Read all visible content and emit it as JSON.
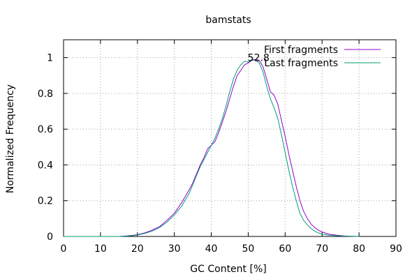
{
  "chart_data": {
    "type": "line",
    "title": "bamstats",
    "xlabel": "GC Content [%]",
    "ylabel": "Normalized Frequency",
    "xlim": [
      0,
      90
    ],
    "ylim": [
      0,
      1.1
    ],
    "xticks": [
      0,
      10,
      20,
      30,
      40,
      50,
      60,
      70,
      80,
      90
    ],
    "yticks": [
      0,
      0.2,
      0.4,
      0.6,
      0.8,
      1
    ],
    "grid": true,
    "legend_position": "top-right",
    "annotation": {
      "text": "52.8",
      "x": 52.8,
      "y": 0.985
    },
    "series": [
      {
        "name": "First fragments",
        "color": "#9400d3",
        "points": [
          [
            0,
            0
          ],
          [
            15,
            0
          ],
          [
            17,
            0.003
          ],
          [
            19,
            0.007
          ],
          [
            20,
            0.01
          ],
          [
            22,
            0.02
          ],
          [
            24,
            0.035
          ],
          [
            26,
            0.055
          ],
          [
            28,
            0.09
          ],
          [
            30,
            0.13
          ],
          [
            32,
            0.19
          ],
          [
            34,
            0.26
          ],
          [
            35,
            0.3
          ],
          [
            36,
            0.35
          ],
          [
            37,
            0.4
          ],
          [
            38,
            0.44
          ],
          [
            39,
            0.49
          ],
          [
            40,
            0.51
          ],
          [
            41,
            0.53
          ],
          [
            42,
            0.58
          ],
          [
            43,
            0.64
          ],
          [
            44,
            0.7
          ],
          [
            45,
            0.77
          ],
          [
            46,
            0.84
          ],
          [
            47,
            0.9
          ],
          [
            48,
            0.93
          ],
          [
            49,
            0.96
          ],
          [
            50,
            0.97
          ],
          [
            51,
            0.985
          ],
          [
            52,
            0.99
          ],
          [
            53,
            0.985
          ],
          [
            54,
            0.95
          ],
          [
            55,
            0.88
          ],
          [
            56,
            0.81
          ],
          [
            57,
            0.79
          ],
          [
            58,
            0.74
          ],
          [
            59,
            0.65
          ],
          [
            60,
            0.56
          ],
          [
            61,
            0.46
          ],
          [
            62,
            0.37
          ],
          [
            63,
            0.28
          ],
          [
            64,
            0.2
          ],
          [
            65,
            0.14
          ],
          [
            66,
            0.1
          ],
          [
            67,
            0.07
          ],
          [
            68,
            0.05
          ],
          [
            69,
            0.035
          ],
          [
            70,
            0.025
          ],
          [
            72,
            0.012
          ],
          [
            74,
            0.007
          ],
          [
            76,
            0.003
          ],
          [
            78,
            0.001
          ],
          [
            80,
            0
          ]
        ]
      },
      {
        "name": "Last fragments",
        "color": "#009e73",
        "points": [
          [
            0,
            0
          ],
          [
            15,
            0
          ],
          [
            17,
            0.002
          ],
          [
            19,
            0.005
          ],
          [
            20,
            0.008
          ],
          [
            22,
            0.017
          ],
          [
            24,
            0.03
          ],
          [
            26,
            0.05
          ],
          [
            28,
            0.08
          ],
          [
            30,
            0.12
          ],
          [
            32,
            0.17
          ],
          [
            34,
            0.24
          ],
          [
            35,
            0.29
          ],
          [
            36,
            0.34
          ],
          [
            37,
            0.39
          ],
          [
            38,
            0.43
          ],
          [
            39,
            0.47
          ],
          [
            40,
            0.51
          ],
          [
            41,
            0.55
          ],
          [
            42,
            0.6
          ],
          [
            43,
            0.66
          ],
          [
            44,
            0.73
          ],
          [
            45,
            0.81
          ],
          [
            46,
            0.88
          ],
          [
            47,
            0.93
          ],
          [
            48,
            0.96
          ],
          [
            49,
            0.98
          ],
          [
            50,
            0.975
          ],
          [
            51,
            0.99
          ],
          [
            52,
            0.985
          ],
          [
            53,
            0.97
          ],
          [
            54,
            0.92
          ],
          [
            55,
            0.84
          ],
          [
            56,
            0.77
          ],
          [
            57,
            0.72
          ],
          [
            58,
            0.66
          ],
          [
            59,
            0.57
          ],
          [
            60,
            0.47
          ],
          [
            61,
            0.37
          ],
          [
            62,
            0.28
          ],
          [
            63,
            0.2
          ],
          [
            64,
            0.13
          ],
          [
            65,
            0.09
          ],
          [
            66,
            0.065
          ],
          [
            67,
            0.045
          ],
          [
            68,
            0.03
          ],
          [
            69,
            0.02
          ],
          [
            70,
            0.013
          ],
          [
            72,
            0.007
          ],
          [
            74,
            0.004
          ],
          [
            76,
            0.002
          ],
          [
            78,
            0.001
          ],
          [
            80,
            0
          ]
        ]
      }
    ]
  }
}
